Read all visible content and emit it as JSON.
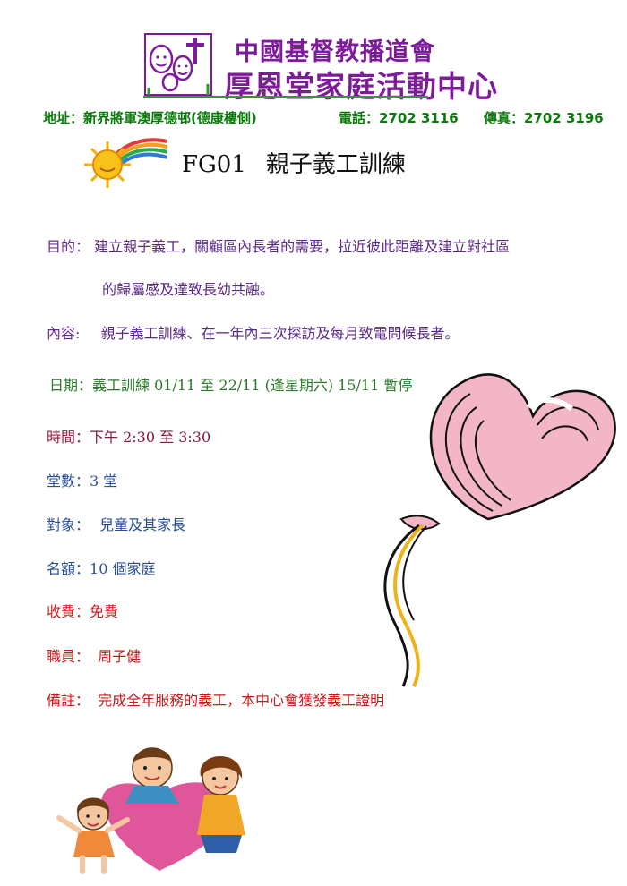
{
  "header": {
    "org_line1": "中國基督教播道會",
    "org_line2": "厚恩堂家庭活動中心",
    "address": "地址：新界將軍澳厚德邨(德康樓側)",
    "phone": "電話：2702 3116",
    "fax": "傳真：2702 3196"
  },
  "title": {
    "code": "FG01",
    "name": "親子義工訓練"
  },
  "fields": {
    "purpose_label": "目的：",
    "purpose_line1": "建立親子義工，關顧區內長者的需要，拉近彼此距離及建立對社區",
    "purpose_line2": "的歸屬感及達致長幼共融。",
    "content_label": "內容:",
    "content_text": "親子義工訓練、在一年內三次探訪及每月致電問候長者。",
    "date_label": "日期：",
    "date_text": "義工訓練 01/11 至 22/11 (逢星期六) 15/11 暫停",
    "time_label": "時間：",
    "time_text": "下午  2:30 至 3:30",
    "sessions_label": "堂數：",
    "sessions_text": "3 堂",
    "target_label": "對象：",
    "target_text": "兒童及其家長",
    "quota_label": "名額：",
    "quota_text": "10 個家庭",
    "fee_label": "收費：",
    "fee_text": "免費",
    "staff_label": "職員：",
    "staff_text": "周子健",
    "remark_label": "備註：",
    "remark_text": "完成全年服務的義工，本中心會獲發義工證明"
  },
  "colors": {
    "org_purple": "#7d1b9a",
    "contact_green": "#0a7a0a",
    "balloon_pink": "#f3b6c6",
    "tail_gold": "#f0b21a"
  }
}
